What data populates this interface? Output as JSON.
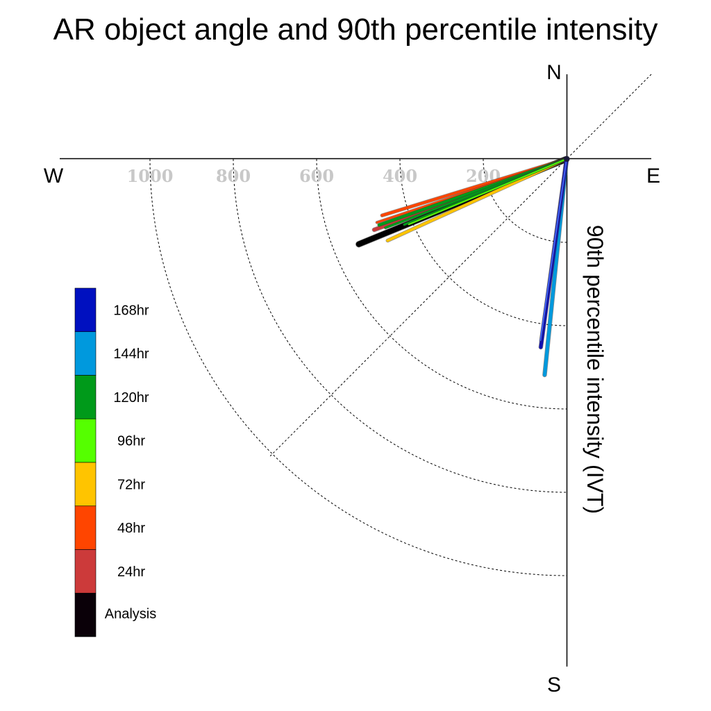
{
  "chart_data": {
    "type": "polar-vector",
    "title": "AR object angle and 90th percentile intensity",
    "ylabel": "90th percentile intensity (IVT)",
    "compass": {
      "north": "N",
      "south": "S",
      "west": "W",
      "east": "E"
    },
    "radial_ticks": [
      200,
      400,
      600,
      800,
      1000
    ],
    "radial_tick_labels": [
      "200",
      "400",
      "600",
      "800",
      "1000"
    ],
    "rlim": [
      0,
      1000
    ],
    "grid": true,
    "legend": {
      "placement": "left",
      "entries": [
        {
          "label": "168hr",
          "color": "#0010c0"
        },
        {
          "label": "144hr",
          "color": "#0099dd"
        },
        {
          "label": "120hr",
          "color": "#009a1a"
        },
        {
          "label": "96hr",
          "color": "#55ff00"
        },
        {
          "label": "72hr",
          "color": "#ffc400"
        },
        {
          "label": "48hr",
          "color": "#ff4500"
        },
        {
          "label": "24hr",
          "color": "#cc3a3a"
        },
        {
          "label": "Analysis",
          "color": "#0a0008"
        }
      ]
    },
    "vectors": [
      {
        "series": "Analysis",
        "color": "#000000",
        "bearing_deg": 247.7,
        "intensity": 539,
        "width": 8
      },
      {
        "series": "24hr",
        "color": "#cc3a3a",
        "bearing_deg": 249.8,
        "intensity": 492,
        "width": 5
      },
      {
        "series": "48hr",
        "color": "#ff4500",
        "bearing_deg": 253.0,
        "intensity": 463,
        "width": 4
      },
      {
        "series": "48hr",
        "color": "#ff4500",
        "bearing_deg": 251.5,
        "intensity": 480,
        "width": 3
      },
      {
        "series": "72hr",
        "color": "#ffc400",
        "bearing_deg": 245.5,
        "intensity": 472,
        "width": 4
      },
      {
        "series": "120hr",
        "color": "#009a1a",
        "bearing_deg": 250.6,
        "intensity": 477,
        "width": 4
      },
      {
        "series": "120hr",
        "color": "#009a1a",
        "bearing_deg": 249.2,
        "intensity": 465,
        "width": 3
      },
      {
        "series": "120hr",
        "color": "#009a1a",
        "bearing_deg": 248.0,
        "intensity": 420,
        "width": 3
      },
      {
        "series": "96hr",
        "color": "#55ff00",
        "bearing_deg": 247.5,
        "intensity": 410,
        "width": 2
      },
      {
        "series": "144hr",
        "color": "#0099dd",
        "bearing_deg": 185.8,
        "intensity": 521,
        "width": 5
      },
      {
        "series": "168hr",
        "color": "#1010b0",
        "bearing_deg": 187.8,
        "intensity": 456,
        "width": 5
      },
      {
        "series": "168hr",
        "color": "#4060ff",
        "bearing_deg": 188.2,
        "intensity": 440,
        "width": 2
      }
    ]
  }
}
